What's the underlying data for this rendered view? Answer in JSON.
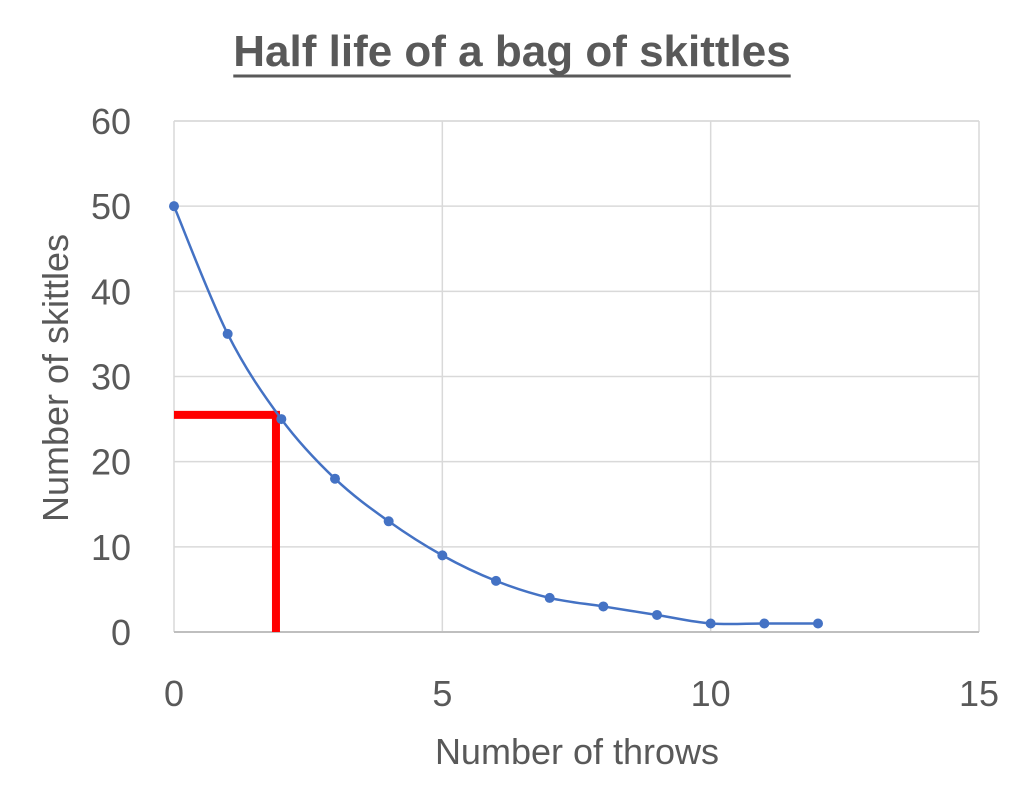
{
  "chart_data": {
    "type": "scatter",
    "title": "Half life of a bag of skittles",
    "xlabel": "Number of throws",
    "ylabel": "Number of skittles",
    "xlim": [
      0,
      15
    ],
    "ylim": [
      0,
      60
    ],
    "x_ticks": [
      "0",
      "5",
      "10",
      "15"
    ],
    "y_ticks": [
      "0",
      "10",
      "20",
      "30",
      "40",
      "50",
      "60"
    ],
    "grid": true,
    "legend": "none",
    "smooth_line": true,
    "series": [
      {
        "x": [
          0,
          1,
          2,
          3,
          4,
          5,
          6,
          7,
          8,
          9,
          10,
          11,
          12
        ],
        "y": [
          50,
          35,
          25,
          18,
          13,
          9,
          6,
          4,
          3,
          2,
          1,
          1,
          1
        ]
      }
    ],
    "half_life_marker": {
      "x": 1.9,
      "y": 25.5
    },
    "colors": {
      "series": "#4472C4",
      "marker": "#FF0000",
      "grid": "#D9D9D9",
      "text": "#595959"
    }
  }
}
